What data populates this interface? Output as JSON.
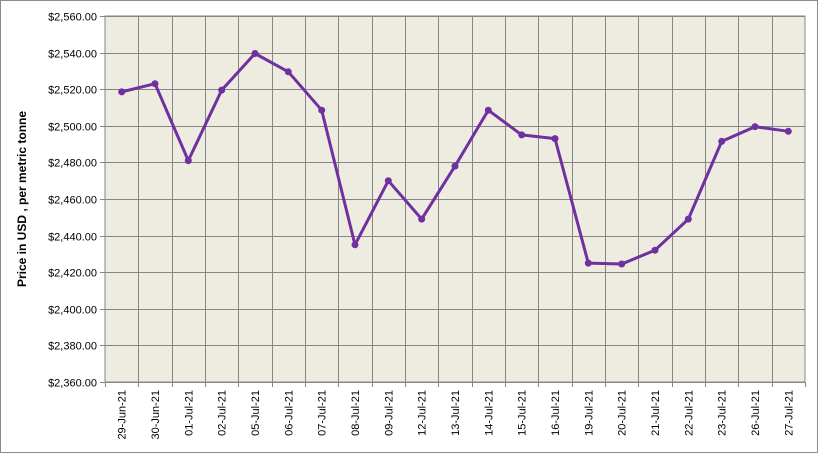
{
  "chart_data": {
    "type": "line",
    "title": "",
    "xlabel": "",
    "ylabel": "Price in USD , per metric tonne",
    "ylim": [
      2360,
      2560
    ],
    "y_step": 20,
    "y_tick_labels": [
      "$2,360.00",
      "$2,380.00",
      "$2,400.00",
      "$2,420.00",
      "$2,440.00",
      "$2,460.00",
      "$2,480.00",
      "$2,500.00",
      "$2,520.00",
      "$2,540.00",
      "$2,560.00"
    ],
    "grid": true,
    "legend": "none",
    "line_color": "#7030a0",
    "categories": [
      "29-Jun-21",
      "30-Jun-21",
      "01-Jul-21",
      "02-Jul-21",
      "05-Jul-21",
      "06-Jul-21",
      "07-Jul-21",
      "08-Jul-21",
      "09-Jul-21",
      "12-Jul-21",
      "13-Jul-21",
      "14-Jul-21",
      "15-Jul-21",
      "16-Jul-21",
      "19-Jul-21",
      "20-Jul-21",
      "21-Jul-21",
      "22-Jul-21",
      "23-Jul-21",
      "26-Jul-21",
      "27-Jul-21"
    ],
    "series": [
      {
        "values": [
          2518.5,
          2523,
          2481,
          2519.5,
          2539.5,
          2529.5,
          2508.5,
          2435,
          2470,
          2449,
          2478,
          2508.5,
          2495,
          2493,
          2425,
          2424.5,
          2432,
          2449,
          2491.5,
          2499.5,
          2497
        ]
      }
    ]
  }
}
